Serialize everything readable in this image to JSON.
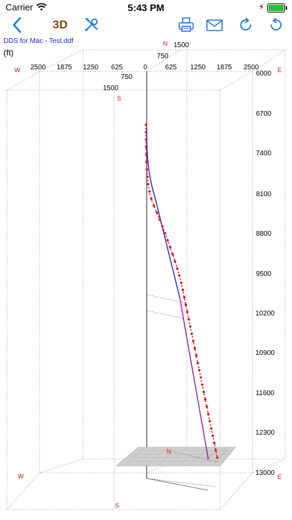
{
  "status_bar": {
    "carrier": "Carrier",
    "time": "5:43 PM"
  },
  "toolbar": {
    "view_mode": "3D"
  },
  "file_name": "DDS for Mac - Test.ddf",
  "unit_label": "(ft)",
  "compass": {
    "north": "N",
    "south": "S",
    "east": "E",
    "west": "W"
  },
  "ew_ticks": [
    "2500",
    "1875",
    "1250",
    "625",
    "0",
    "625",
    "1250",
    "1875",
    "2500"
  ],
  "ns_ticks": [
    "1500",
    "750",
    "750",
    "1500"
  ],
  "depth_ticks": [
    "6000",
    "6700",
    "7400",
    "8100",
    "8800",
    "9500",
    "10200",
    "10900",
    "11600",
    "12300",
    "13000"
  ],
  "colors": {
    "accent": "#1f7ae0",
    "survey": "#e01010",
    "plan_blue": "#2a2ae0",
    "plan_magenta": "#ff3ad0",
    "plan_purple": "#8b2a9a"
  }
}
